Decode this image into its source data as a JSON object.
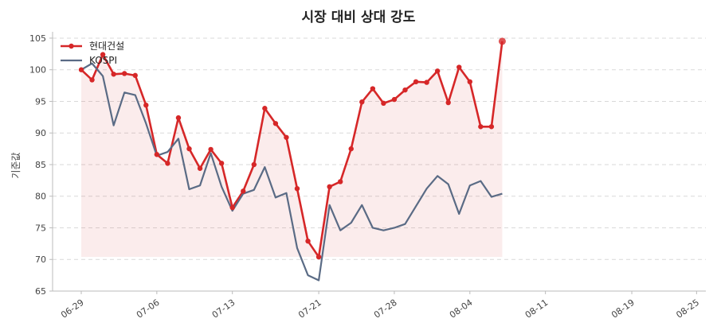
{
  "chart_data": {
    "type": "line",
    "title": "시장 대비 상대 강도",
    "xlabel": "",
    "ylabel": "기준값",
    "ylim": [
      65,
      106
    ],
    "yticks": [
      65,
      70,
      75,
      80,
      85,
      90,
      95,
      100,
      105
    ],
    "grid": "horizontal-dashed",
    "legend_position": "top-left",
    "x": [
      "06-29",
      "06-30",
      "07-01",
      "07-02",
      "07-03",
      "07-04",
      "07-05",
      "07-06",
      "07-07",
      "07-08",
      "07-09",
      "07-10",
      "07-11",
      "07-12",
      "07-13",
      "07-14",
      "07-15",
      "07-16",
      "07-17",
      "07-18",
      "07-19",
      "07-20",
      "07-21",
      "07-22",
      "07-23",
      "07-24",
      "07-25",
      "07-26",
      "07-27",
      "07-28",
      "07-29",
      "07-30",
      "07-31",
      "08-01",
      "08-02",
      "08-03",
      "08-04",
      "08-05",
      "08-06",
      "08-07",
      "08-08",
      "08-09",
      "08-10",
      "08-11",
      "08-12",
      "08-13",
      "08-14",
      "08-15",
      "08-16",
      "08-17",
      "08-18",
      "08-19",
      "08-20",
      "08-21",
      "08-22",
      "08-23",
      "08-24",
      "08-25"
    ],
    "xticks": [
      "06-29",
      "07-06",
      "07-13",
      "07-21",
      "07-28",
      "08-04",
      "08-11",
      "08-19",
      "08-25"
    ],
    "series": [
      {
        "name": "현대건설",
        "color": "#d62728",
        "marker": "circle",
        "fill": true,
        "points": [
          [
            "06-29",
            100.0
          ],
          [
            "06-30",
            98.4
          ],
          [
            "07-01",
            102.4
          ],
          [
            "07-02",
            99.3
          ],
          [
            "07-03",
            99.4
          ],
          [
            "07-04",
            99.1
          ],
          [
            "07-05",
            94.4
          ],
          [
            "07-06",
            86.6
          ],
          [
            "07-07",
            85.2
          ],
          [
            "07-08",
            92.4
          ],
          [
            "07-09",
            87.5
          ],
          [
            "07-10",
            84.4
          ],
          [
            "07-11",
            87.4
          ],
          [
            "07-12",
            85.2
          ],
          [
            "07-13",
            78.2
          ],
          [
            "07-14",
            80.8
          ],
          [
            "07-15",
            85.0
          ],
          [
            "07-16",
            93.9
          ],
          [
            "07-17",
            91.5
          ],
          [
            "07-18",
            89.3
          ],
          [
            "07-19",
            81.2
          ],
          [
            "07-20",
            72.9
          ],
          [
            "07-21",
            70.4
          ],
          [
            "07-22",
            81.5
          ],
          [
            "07-23",
            82.3
          ],
          [
            "07-24",
            87.5
          ],
          [
            "07-25",
            94.9
          ],
          [
            "07-26",
            97.0
          ],
          [
            "07-27",
            94.7
          ],
          [
            "07-28",
            95.3
          ],
          [
            "07-29",
            96.8
          ],
          [
            "07-30",
            98.1
          ],
          [
            "07-31",
            98.0
          ],
          [
            "08-01",
            99.8
          ],
          [
            "08-02",
            94.8
          ],
          [
            "08-03",
            100.4
          ],
          [
            "08-04",
            98.1
          ],
          [
            "08-05",
            91.0
          ],
          [
            "08-06",
            91.0
          ],
          [
            "08-07",
            104.5
          ]
        ]
      },
      {
        "name": "KOSPI",
        "color": "#5a6b85",
        "marker": "none",
        "fill": false,
        "points": [
          [
            "06-29",
            100.0
          ],
          [
            "06-30",
            101.0
          ],
          [
            "07-01",
            99.0
          ],
          [
            "07-02",
            91.2
          ],
          [
            "07-03",
            96.4
          ],
          [
            "07-04",
            96.0
          ],
          [
            "07-05",
            91.5
          ],
          [
            "07-06",
            86.4
          ],
          [
            "07-07",
            87.0
          ],
          [
            "07-08",
            89.1
          ],
          [
            "07-09",
            81.1
          ],
          [
            "07-10",
            81.7
          ],
          [
            "07-11",
            86.8
          ],
          [
            "07-12",
            81.5
          ],
          [
            "07-13",
            77.7
          ],
          [
            "07-14",
            80.4
          ],
          [
            "07-15",
            81.0
          ],
          [
            "07-16",
            84.6
          ],
          [
            "07-17",
            79.8
          ],
          [
            "07-18",
            80.5
          ],
          [
            "07-19",
            71.8
          ],
          [
            "07-20",
            67.5
          ],
          [
            "07-21",
            66.7
          ],
          [
            "07-22",
            78.6
          ],
          [
            "07-23",
            74.6
          ],
          [
            "07-24",
            75.8
          ],
          [
            "07-25",
            78.6
          ],
          [
            "07-26",
            75.0
          ],
          [
            "07-27",
            74.6
          ],
          [
            "07-28",
            75.0
          ],
          [
            "07-29",
            75.6
          ],
          [
            "07-30",
            78.4
          ],
          [
            "07-31",
            81.2
          ],
          [
            "08-01",
            83.2
          ],
          [
            "08-02",
            81.9
          ],
          [
            "08-03",
            77.2
          ],
          [
            "08-04",
            81.7
          ],
          [
            "08-05",
            82.4
          ],
          [
            "08-06",
            79.9
          ],
          [
            "08-07",
            80.4
          ]
        ]
      }
    ]
  }
}
